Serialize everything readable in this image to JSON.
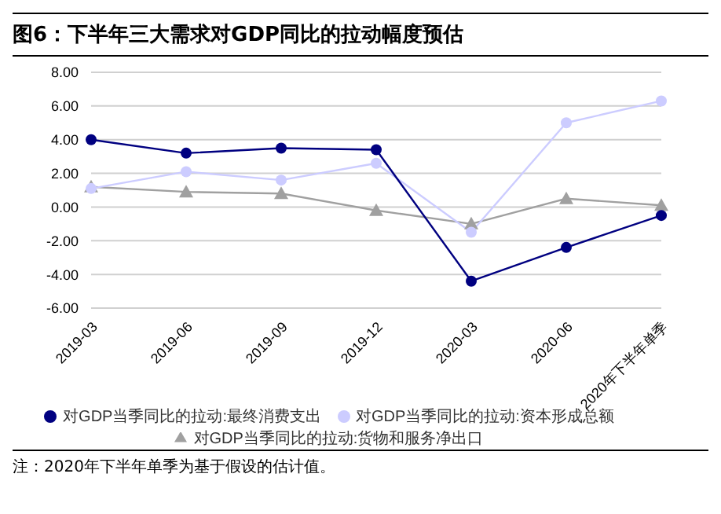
{
  "chart_data": {
    "type": "line",
    "title": "图6：下半年三大需求对GDP同比的拉动幅度预估",
    "categories": [
      "2019-03",
      "2019-06",
      "2019-09",
      "2019-12",
      "2020-03",
      "2020-06",
      "2020年下半年单季"
    ],
    "series": [
      {
        "name": "对GDP当季同比的拉动:最终消费支出",
        "color": "#000080",
        "marker": "circle",
        "values": [
          4.0,
          3.2,
          3.5,
          3.4,
          -4.4,
          -2.4,
          -0.5
        ]
      },
      {
        "name": "对GDP当季同比的拉动:资本形成总额",
        "color": "#ccccff",
        "marker": "circle",
        "values": [
          1.1,
          2.1,
          1.6,
          2.6,
          -1.5,
          5.0,
          6.3
        ]
      },
      {
        "name": "对GDP当季同比的拉动:货物和服务净出口",
        "color": "#a0a0a0",
        "marker": "triangle",
        "values": [
          1.2,
          0.9,
          0.8,
          -0.2,
          -1.0,
          0.5,
          0.1
        ]
      }
    ],
    "ylim": [
      -6,
      8
    ],
    "yticks": [
      {
        "value": -6,
        "label": "-6.00"
      },
      {
        "value": -4,
        "label": "-4.00"
      },
      {
        "value": -2,
        "label": "-2.00"
      },
      {
        "value": 0,
        "label": "0.00"
      },
      {
        "value": 2,
        "label": "2.00"
      },
      {
        "value": 4,
        "label": "4.00"
      },
      {
        "value": 6,
        "label": "6.00"
      },
      {
        "value": 8,
        "label": "8.00"
      }
    ],
    "grid": "y",
    "legend": "bottom",
    "line_style": "solid",
    "annotations": [
      "注：2020年下半年单季为基于假设的估计值。"
    ]
  }
}
